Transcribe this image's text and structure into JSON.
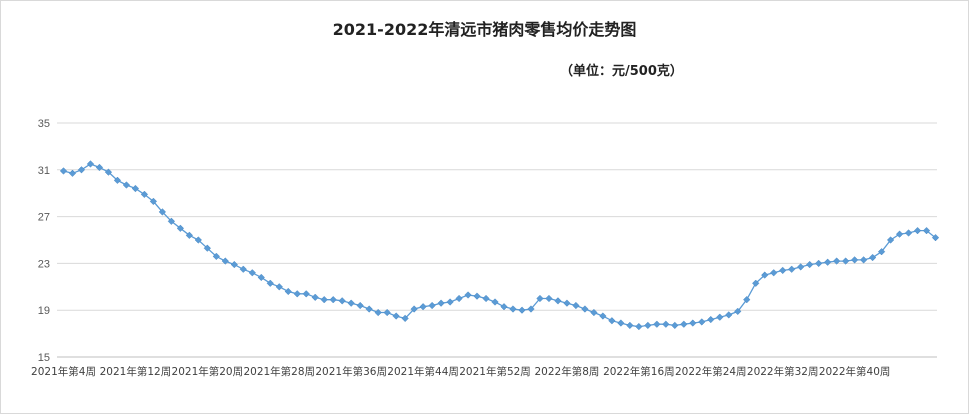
{
  "chart_data": {
    "type": "line",
    "title": "2021-2022年清远市猪肉零售均价走势图",
    "subtitle": "（单位：元/500克）",
    "xlabel": "",
    "ylabel": "",
    "ylim": [
      15,
      35
    ],
    "yticks": [
      15,
      19,
      23,
      27,
      31,
      35
    ],
    "grid": true,
    "legend": "none",
    "colors": {
      "line": "#5b9bd5",
      "marker": "#5b9bd5",
      "grid": "#d9d9d9",
      "axis": "#bfbfbf"
    },
    "tick_labels": [
      {
        "label": "2021年第4周",
        "at": 0
      },
      {
        "label": "2021年第12周",
        "at": 8
      },
      {
        "label": "2021年第20周",
        "at": 16
      },
      {
        "label": "2021年第28周",
        "at": 24
      },
      {
        "label": "2021年第36周",
        "at": 32
      },
      {
        "label": "2021年第44周",
        "at": 40
      },
      {
        "label": "2021年第52周",
        "at": 48
      },
      {
        "label": "2022年第8周",
        "at": 56
      },
      {
        "label": "2022年第16周",
        "at": 64
      },
      {
        "label": "2022年第24周",
        "at": 72
      },
      {
        "label": "2022年第32周",
        "at": 80
      },
      {
        "label": "2022年第40周",
        "at": 88
      }
    ],
    "series": [
      {
        "values": [
          30.9,
          30.7,
          31.0,
          31.5,
          31.2,
          30.8,
          30.1,
          29.7,
          29.4,
          28.9,
          28.3,
          27.4,
          26.6,
          26.0,
          25.4,
          25.0,
          24.3,
          23.6,
          23.2,
          22.9,
          22.5,
          22.2,
          21.8,
          21.3,
          21.0,
          20.6,
          20.4,
          20.4,
          20.1,
          19.9,
          19.9,
          19.8,
          19.6,
          19.4,
          19.1,
          18.8,
          18.8,
          18.5,
          18.3,
          19.1,
          19.3,
          19.4,
          19.6,
          19.7,
          20.0,
          20.3,
          20.2,
          20.0,
          19.7,
          19.3,
          19.1,
          19.0,
          19.1,
          20.0,
          20.0,
          19.8,
          19.6,
          19.4,
          19.1,
          18.8,
          18.5,
          18.1,
          17.9,
          17.7,
          17.6,
          17.7,
          17.8,
          17.8,
          17.7,
          17.8,
          17.9,
          18.0,
          18.2,
          18.4,
          18.6,
          18.9,
          19.9,
          21.3,
          22.0,
          22.2,
          22.4,
          22.5,
          22.7,
          22.9,
          23.0,
          23.1,
          23.2,
          23.2,
          23.3,
          23.3,
          23.5,
          24.0,
          25.0,
          25.5,
          25.6,
          25.8,
          25.8,
          25.2
        ]
      }
    ]
  }
}
